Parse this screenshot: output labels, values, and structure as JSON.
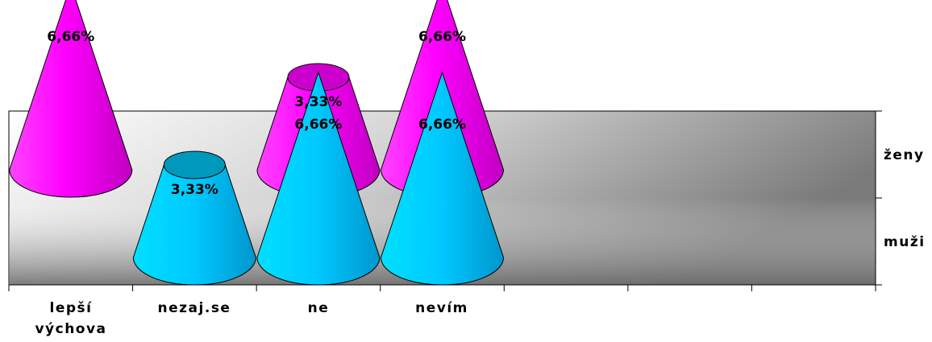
{
  "chart_data": {
    "type": "bar",
    "subtype": "3d-cone",
    "categories": [
      "lepší výchova",
      "nezaj.se",
      "ne",
      "nevím"
    ],
    "category_lines": [
      [
        "lepší",
        "výchova"
      ],
      [
        "nezaj.se"
      ],
      [
        "ne"
      ],
      [
        "nevím"
      ]
    ],
    "series": [
      {
        "name": "ženy",
        "values": [
          6.66,
          null,
          3.33,
          6.66
        ],
        "labels": [
          "6,66%",
          "",
          "3,33%",
          "6,66%"
        ]
      },
      {
        "name": "muži",
        "values": [
          null,
          3.33,
          6.66,
          6.66
        ],
        "labels": [
          "",
          "3,33%",
          "6,66%",
          "6,66%"
        ]
      }
    ],
    "full_height_value": 6.66,
    "empty_slots": 3,
    "colors": {
      "zeny": "#ff00ff",
      "zeny_dark": "#a000a0",
      "muzi": "#00ccff",
      "muzi_dark": "#0088aa",
      "outline": "#000000"
    },
    "grid": false,
    "legend": "none"
  }
}
